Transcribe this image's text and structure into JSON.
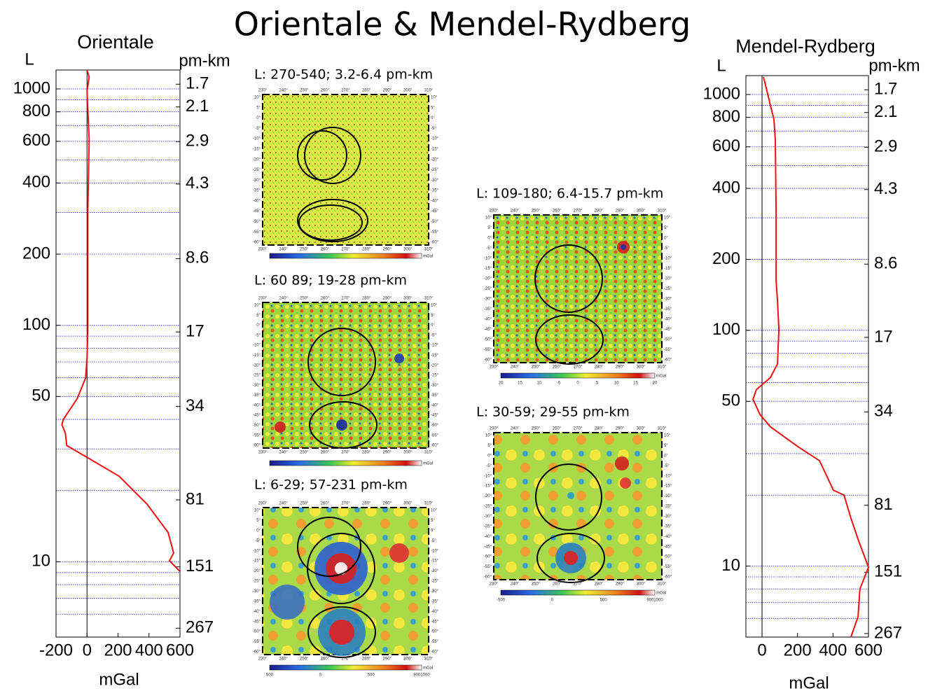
{
  "title": "Orientale  &  Mendel-Rydberg",
  "chart_data": [
    {
      "type": "line",
      "title": "Orientale",
      "ylabel": "L",
      "y2label": "pm-km",
      "xlabel": "mGal",
      "ylog": true,
      "y2log": true,
      "ylim": [
        4.8,
        1202
      ],
      "yticks": [
        10,
        50,
        100,
        200,
        400,
        600,
        800,
        1000
      ],
      "y2lim": [
        290,
        1.49
      ],
      "y2ticks": [
        1.7,
        2.1,
        2.9,
        4.3,
        8.6,
        17,
        34,
        81,
        151,
        267
      ],
      "xlim": [
        -200,
        600
      ],
      "xticks": [
        -200,
        0,
        200,
        400,
        600
      ],
      "grid_lines": [
        6,
        7,
        8,
        9,
        10,
        20,
        30,
        40,
        50,
        60,
        70,
        80,
        90,
        100,
        200,
        300,
        400,
        500,
        600,
        700,
        800,
        900,
        1000
      ],
      "grid_color": "#1a1aff",
      "series": [
        {
          "color": "#ee1111",
          "x": [
            0,
            14,
            0,
            14,
            5,
            5,
            5,
            0,
            -9,
            -63,
            -153,
            -162,
            -140,
            -131,
            27,
            207,
            388,
            523,
            559,
            532,
            600
          ],
          "values": [
            1202,
            1123,
            980,
            608,
            307,
            155,
            96,
            73,
            60,
            49,
            40,
            38,
            35,
            31,
            27,
            23,
            17.5,
            13.3,
            10.9,
            10.1,
            9.1
          ]
        }
      ]
    },
    {
      "type": "line",
      "title": "Mendel-Rydberg",
      "ylabel": "L",
      "y2label": "pm-km",
      "xlabel": "mGal",
      "ylog": true,
      "y2log": true,
      "ylim": [
        5.0,
        1203
      ],
      "yticks": [
        10,
        50,
        100,
        200,
        400,
        600,
        800,
        1000
      ],
      "y2lim": [
        276,
        1.49
      ],
      "y2ticks": [
        1.7,
        2.1,
        2.9,
        4.3,
        8.6,
        17,
        34,
        81,
        151,
        267
      ],
      "xlim": [
        -91,
        600
      ],
      "xticks": [
        0,
        200,
        400,
        600
      ],
      "grid_lines": [
        6,
        7,
        8,
        9,
        10,
        20,
        30,
        40,
        50,
        60,
        70,
        80,
        90,
        100,
        200,
        300,
        400,
        500,
        600,
        700,
        800,
        900,
        1000
      ],
      "grid_color": "#1a1aff",
      "series": [
        {
          "color": "#ee1111",
          "x": [
            8,
            28,
            47,
            67,
            75,
            79,
            79,
            87,
            95,
            87,
            47,
            -32,
            -51,
            -12,
            47,
            205,
            324,
            402,
            462,
            501,
            541,
            600,
            552,
            541,
            501
          ],
          "values": [
            1187,
            1035,
            902,
            786,
            641,
            324,
            163,
            133,
            101,
            72,
            63,
            56,
            51,
            44,
            39,
            32,
            28,
            21,
            20,
            16,
            13,
            9.9,
            8.0,
            6.1,
            5.0
          ]
        }
      ]
    }
  ],
  "maps": [
    {
      "title": "L: 270-540; 3.2-6.4 pm-km"
    },
    {
      "title": "L: 60 89; 19-28 pm-km"
    },
    {
      "title": "L: 6-29; 57-231 pm-km",
      "colorbar_labels": [
        "500",
        "0",
        "500",
        "9001000"
      ]
    },
    {
      "title": "L: 109-180; 6.4-15.7 pm-km",
      "colorbar_labels": [
        "20",
        "15",
        "10",
        "-5",
        "0",
        "5",
        "10",
        "15",
        "20"
      ]
    },
    {
      "title": "L: 30-59; 29-55 pm-km",
      "colorbar_labels": [
        "-500",
        "0",
        "500",
        "9001000"
      ]
    }
  ],
  "map_lon_labels": [
    "230°",
    "240°",
    "250°",
    "260°",
    "270°",
    "280°",
    "290°",
    "300°",
    "310°"
  ],
  "map_lat_labels": [
    "10°",
    "5°",
    "0°",
    "-5°",
    "-10°",
    "-15°",
    "-20°",
    "-25°",
    "-30°",
    "-35°",
    "-40°",
    "-45°",
    "-50°",
    "-55°",
    "-60°"
  ],
  "colorbar_unit": "mGal"
}
